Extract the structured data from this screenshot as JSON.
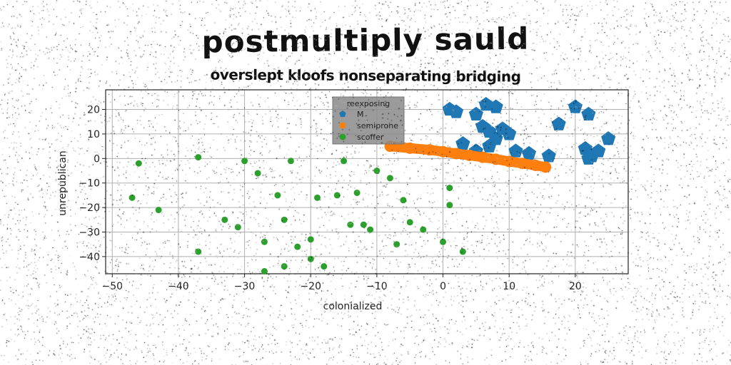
{
  "title": "postmultiply sauld",
  "subtitle": "overslept kloofs nonseparating bridging",
  "chart_data": {
    "type": "scatter",
    "title": "postmultiply sauld",
    "subtitle": "overslept kloofs nonseparating bridging",
    "xlabel": "colonialized",
    "ylabel": "unrepublican",
    "xlim": [
      -51,
      28
    ],
    "ylim": [
      -47,
      28
    ],
    "xticks": [
      -50,
      -40,
      -30,
      -20,
      -10,
      0,
      10,
      20
    ],
    "yticks": [
      -40,
      -30,
      -20,
      -10,
      0,
      10,
      20
    ],
    "xtick_labels": [
      "−50",
      "−40",
      "−30",
      "−20",
      "−10",
      "0",
      "10",
      "20"
    ],
    "ytick_labels": [
      "−40",
      "−30",
      "−20",
      "−10",
      "0",
      "10",
      "20"
    ],
    "grid": true,
    "legend": {
      "title": "reexposing",
      "placement": "top-center"
    },
    "series": [
      {
        "name": "M",
        "color": "#1f77b4",
        "marker": "pentagon",
        "x": [
          1,
          2,
          5,
          6.5,
          8,
          6,
          7,
          9,
          10,
          8,
          7,
          3,
          5,
          11,
          13,
          16,
          17.5,
          20,
          22,
          25,
          21.5,
          22.5,
          23.5,
          22
        ],
        "y": [
          20,
          19,
          18,
          22,
          21,
          13,
          11,
          12,
          10,
          8,
          5,
          6,
          3,
          3,
          2,
          1,
          14,
          21,
          18,
          8,
          4,
          1,
          3,
          0
        ]
      },
      {
        "name": "semiprone",
        "color": "#ff7f0e",
        "marker": "circle",
        "x": [
          -8,
          -5,
          -2,
          0,
          2,
          4,
          6,
          8,
          10,
          12,
          14,
          15.5
        ],
        "y": [
          5,
          4.2,
          3.5,
          2.8,
          2,
          1.3,
          0.5,
          -0.3,
          -1.2,
          -2,
          -2.8,
          -3.5
        ]
      },
      {
        "name": "scoffer",
        "color": "#2ca02c",
        "marker": "circle",
        "x": [
          -47,
          -46,
          -43,
          -37,
          -37,
          -33,
          -31,
          -30,
          -28,
          -27,
          -27,
          -25,
          -24,
          -24,
          -23,
          -22,
          -20,
          -20,
          -19,
          -18,
          -16,
          -15,
          -14,
          -13,
          -12,
          -11,
          -10,
          -8,
          -7,
          -6,
          -5,
          -3,
          0,
          1,
          1,
          3
        ],
        "y": [
          -16,
          -2,
          -21,
          0.5,
          -38,
          -25,
          -28,
          -1,
          -6,
          -34,
          -46,
          -15,
          -25,
          -44,
          -1,
          -36,
          -33,
          -41,
          -16,
          -44,
          -15,
          -1,
          -27,
          -14,
          -27,
          -29,
          -5,
          -8,
          -35,
          -17,
          -26,
          -29,
          -34,
          -12,
          -19,
          -38
        ]
      }
    ]
  }
}
